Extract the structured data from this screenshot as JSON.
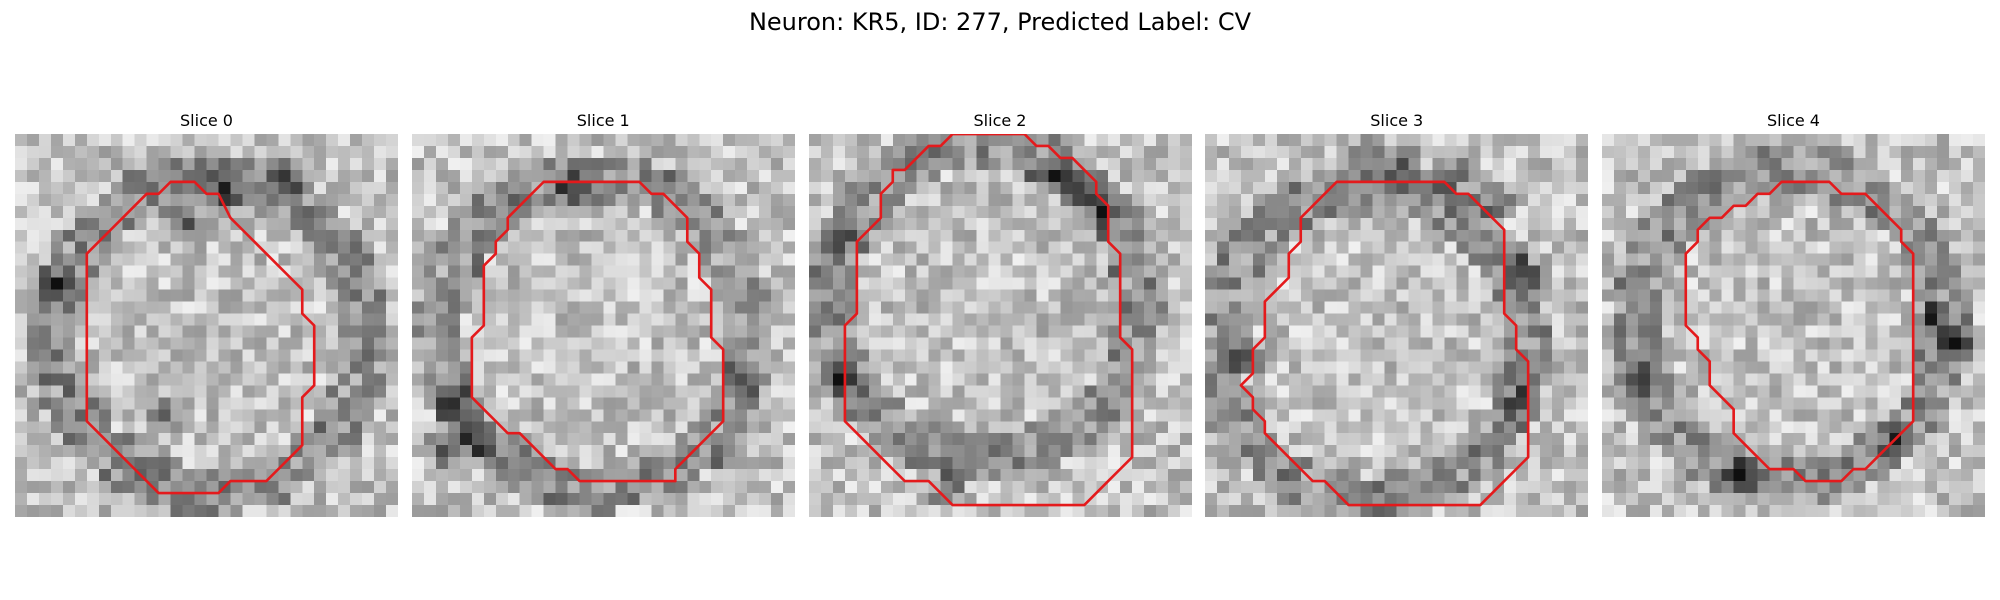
{
  "figure": {
    "title": "Neuron: KR5, ID: 277, Predicted Label: CV"
  },
  "contour_color": "#e41a1c",
  "slices": [
    {
      "title": "Slice 0",
      "dark_spots": [
        [
          14,
          7
        ],
        [
          17,
          4
        ],
        [
          22,
          3
        ],
        [
          3,
          12
        ],
        [
          12,
          23
        ]
      ],
      "contour": [
        [
          6,
          10
        ],
        [
          8,
          8
        ],
        [
          9,
          7
        ],
        [
          11,
          5
        ],
        [
          12,
          5
        ],
        [
          13,
          4
        ],
        [
          15,
          4
        ],
        [
          16,
          5
        ],
        [
          17,
          5
        ],
        [
          18,
          7
        ],
        [
          19,
          8
        ],
        [
          20,
          9
        ],
        [
          21,
          10
        ],
        [
          22,
          11
        ],
        [
          23,
          12
        ],
        [
          24,
          13
        ],
        [
          24,
          15
        ],
        [
          25,
          16
        ],
        [
          25,
          21
        ],
        [
          24,
          22
        ],
        [
          24,
          26
        ],
        [
          23,
          27
        ],
        [
          22,
          28
        ],
        [
          21,
          29
        ],
        [
          18,
          29
        ],
        [
          17,
          30
        ],
        [
          12,
          30
        ],
        [
          11,
          29
        ],
        [
          10,
          28
        ],
        [
          9,
          27
        ],
        [
          8,
          26
        ],
        [
          7,
          25
        ],
        [
          6,
          24
        ]
      ]
    },
    {
      "title": "Slice 1",
      "dark_spots": [
        [
          3,
          22
        ],
        [
          2,
          26
        ],
        [
          5,
          25
        ],
        [
          13,
          4
        ],
        [
          27,
          20
        ]
      ],
      "contour": [
        [
          9,
          6
        ],
        [
          10,
          5
        ],
        [
          11,
          4
        ],
        [
          19,
          4
        ],
        [
          20,
          5
        ],
        [
          21,
          5
        ],
        [
          22,
          6
        ],
        [
          23,
          7
        ],
        [
          23,
          9
        ],
        [
          24,
          10
        ],
        [
          24,
          12
        ],
        [
          25,
          13
        ],
        [
          25,
          17
        ],
        [
          26,
          18
        ],
        [
          26,
          24
        ],
        [
          25,
          25
        ],
        [
          24,
          26
        ],
        [
          23,
          27
        ],
        [
          22,
          28
        ],
        [
          22,
          29
        ],
        [
          14,
          29
        ],
        [
          13,
          28
        ],
        [
          12,
          28
        ],
        [
          11,
          27
        ],
        [
          10,
          26
        ],
        [
          9,
          25
        ],
        [
          8,
          25
        ],
        [
          7,
          24
        ],
        [
          6,
          23
        ],
        [
          5,
          22
        ],
        [
          5,
          17
        ],
        [
          6,
          16
        ],
        [
          6,
          11
        ],
        [
          7,
          10
        ],
        [
          7,
          9
        ],
        [
          8,
          8
        ],
        [
          8,
          7
        ]
      ]
    },
    {
      "title": "Slice 2",
      "dark_spots": [
        [
          20,
          3
        ],
        [
          22,
          4
        ],
        [
          24,
          6
        ],
        [
          2,
          8
        ],
        [
          2,
          20
        ],
        [
          11,
          29
        ]
      ],
      "contour": [
        [
          7,
          3
        ],
        [
          8,
          3
        ],
        [
          10,
          1
        ],
        [
          11,
          1
        ],
        [
          12,
          0
        ],
        [
          18,
          0
        ],
        [
          19,
          1
        ],
        [
          20,
          1
        ],
        [
          21,
          2
        ],
        [
          22,
          2
        ],
        [
          23,
          3
        ],
        [
          24,
          4
        ],
        [
          24,
          5
        ],
        [
          25,
          6
        ],
        [
          25,
          9
        ],
        [
          26,
          10
        ],
        [
          26,
          17
        ],
        [
          27,
          18
        ],
        [
          27,
          27
        ],
        [
          26,
          28
        ],
        [
          25,
          29
        ],
        [
          24,
          30
        ],
        [
          23,
          31
        ],
        [
          12,
          31
        ],
        [
          11,
          30
        ],
        [
          10,
          29
        ],
        [
          8,
          29
        ],
        [
          7,
          28
        ],
        [
          6,
          27
        ],
        [
          5,
          26
        ],
        [
          4,
          25
        ],
        [
          3,
          24
        ],
        [
          3,
          16
        ],
        [
          4,
          15
        ],
        [
          4,
          9
        ],
        [
          5,
          8
        ],
        [
          6,
          7
        ],
        [
          6,
          5
        ],
        [
          7,
          4
        ]
      ]
    },
    {
      "title": "Slice 3",
      "dark_spots": [
        [
          13,
          1
        ],
        [
          16,
          2
        ],
        [
          20,
          3
        ],
        [
          24,
          5
        ],
        [
          26,
          11
        ],
        [
          3,
          18
        ],
        [
          26,
          22
        ]
      ],
      "contour": [
        [
          11,
          4
        ],
        [
          10,
          5
        ],
        [
          9,
          6
        ],
        [
          8,
          7
        ],
        [
          8,
          9
        ],
        [
          7,
          10
        ],
        [
          7,
          12
        ],
        [
          6,
          13
        ],
        [
          5,
          14
        ],
        [
          5,
          17
        ],
        [
          4,
          18
        ],
        [
          4,
          20
        ],
        [
          3,
          21
        ],
        [
          4,
          22
        ],
        [
          4,
          23
        ],
        [
          5,
          24
        ],
        [
          5,
          25
        ],
        [
          6,
          26
        ],
        [
          7,
          27
        ],
        [
          8,
          28
        ],
        [
          9,
          29
        ],
        [
          10,
          29
        ],
        [
          11,
          30
        ],
        [
          12,
          31
        ],
        [
          23,
          31
        ],
        [
          24,
          30
        ],
        [
          25,
          29
        ],
        [
          26,
          28
        ],
        [
          27,
          27
        ],
        [
          27,
          19
        ],
        [
          26,
          18
        ],
        [
          26,
          16
        ],
        [
          25,
          15
        ],
        [
          25,
          8
        ],
        [
          24,
          7
        ],
        [
          23,
          6
        ],
        [
          22,
          5
        ],
        [
          21,
          5
        ],
        [
          20,
          4
        ],
        [
          19,
          4
        ]
      ]
    },
    {
      "title": "Slice 4",
      "dark_spots": [
        [
          27,
          15
        ],
        [
          29,
          17
        ],
        [
          3,
          20
        ],
        [
          11,
          28
        ],
        [
          24,
          25
        ]
      ],
      "contour": [
        [
          8,
          8
        ],
        [
          9,
          7
        ],
        [
          10,
          7
        ],
        [
          11,
          6
        ],
        [
          12,
          6
        ],
        [
          13,
          5
        ],
        [
          14,
          5
        ],
        [
          15,
          4
        ],
        [
          19,
          4
        ],
        [
          20,
          5
        ],
        [
          22,
          5
        ],
        [
          23,
          6
        ],
        [
          24,
          7
        ],
        [
          25,
          8
        ],
        [
          25,
          9
        ],
        [
          26,
          10
        ],
        [
          26,
          24
        ],
        [
          25,
          25
        ],
        [
          24,
          26
        ],
        [
          23,
          27
        ],
        [
          22,
          28
        ],
        [
          21,
          28
        ],
        [
          20,
          29
        ],
        [
          17,
          29
        ],
        [
          16,
          28
        ],
        [
          14,
          28
        ],
        [
          13,
          27
        ],
        [
          12,
          26
        ],
        [
          11,
          25
        ],
        [
          11,
          23
        ],
        [
          10,
          22
        ],
        [
          9,
          21
        ],
        [
          9,
          19
        ],
        [
          8,
          18
        ],
        [
          8,
          17
        ],
        [
          7,
          16
        ],
        [
          7,
          10
        ],
        [
          8,
          9
        ]
      ]
    }
  ]
}
